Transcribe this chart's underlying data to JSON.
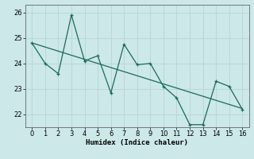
{
  "x": [
    0,
    1,
    2,
    3,
    4,
    5,
    6,
    7,
    8,
    9,
    10,
    11,
    12,
    13,
    14,
    15,
    16
  ],
  "y": [
    24.8,
    24.0,
    23.6,
    25.9,
    24.1,
    24.3,
    22.85,
    24.75,
    23.95,
    24.0,
    23.1,
    22.65,
    21.6,
    21.6,
    23.3,
    23.1,
    22.2
  ],
  "line_color": "#1a6b5a",
  "trend_color": "#1a6b5a",
  "bg_color": "#cce8e8",
  "grid_color": "#b8d8d8",
  "xlabel": "Humidex (Indice chaleur)",
  "ylim": [
    21.5,
    26.3
  ],
  "xlim": [
    -0.5,
    16.5
  ],
  "yticks": [
    22,
    23,
    24,
    25,
    26
  ],
  "xticks": [
    0,
    1,
    2,
    3,
    4,
    5,
    6,
    7,
    8,
    9,
    10,
    11,
    12,
    13,
    14,
    15,
    16
  ],
  "label_fontsize": 6.5,
  "tick_fontsize": 6.0
}
